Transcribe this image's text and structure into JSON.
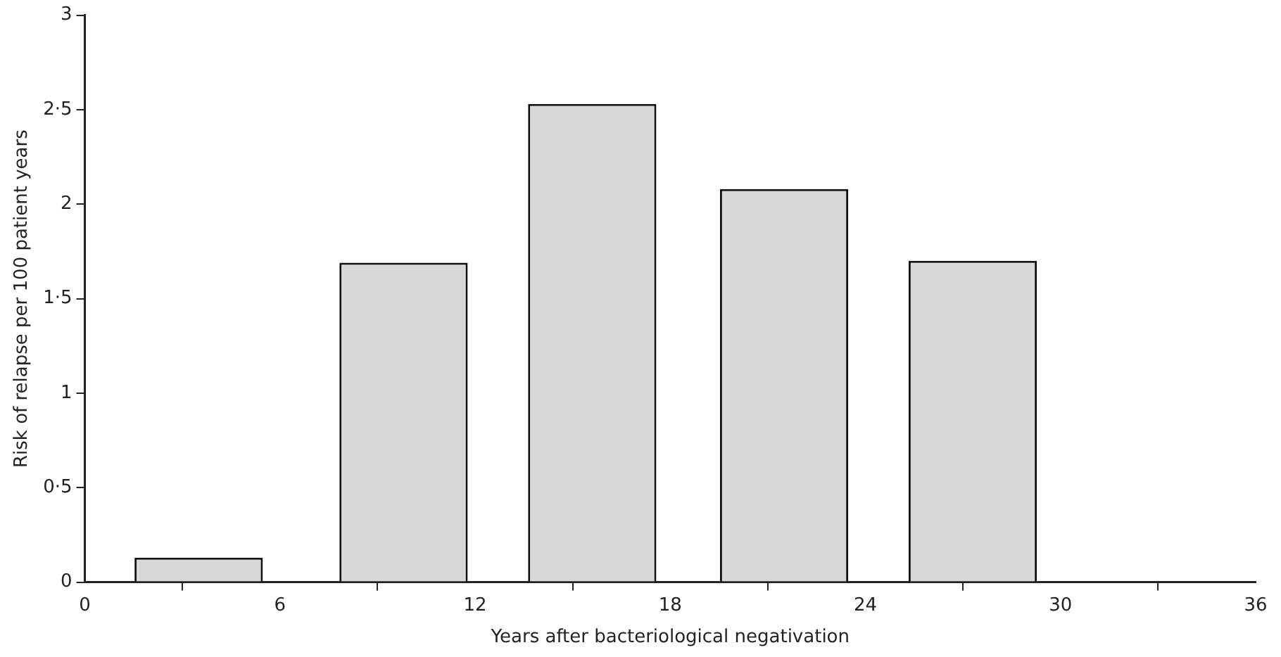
{
  "chart_data": {
    "type": "bar",
    "xlabel": "Years after bacteriological negativation",
    "ylabel": "Risk of relapse per 100 patient years",
    "x": [
      3.5,
      9.8,
      15.6,
      21.5,
      27.3
    ],
    "values": [
      0.13,
      1.69,
      2.53,
      2.08,
      1.7
    ],
    "color": "#d8d8d8",
    "xlim": [
      0,
      36
    ],
    "xticks": [
      0,
      6,
      12,
      18,
      24,
      30,
      36
    ],
    "ylim": [
      0,
      3
    ],
    "yticks": [
      0,
      {
        "value": 0.5,
        "label": "0·5"
      },
      1,
      {
        "value": 1.5,
        "label": "1·5"
      },
      2,
      {
        "value": 2.5,
        "label": "2·5"
      },
      3
    ],
    "grid": false,
    "legend": false
  }
}
